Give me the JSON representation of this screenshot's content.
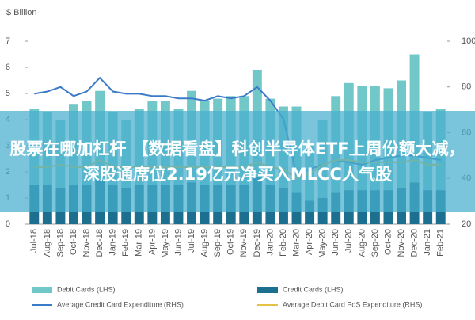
{
  "chart_data": {
    "type": "bar_line",
    "y_label": "$ Billion",
    "categories": [
      "Jul-18",
      "Aug-18",
      "Sep-18",
      "Oct-18",
      "Nov-18",
      "Dec-18",
      "Jan-19",
      "Feb-19",
      "Mar-19",
      "Apr-19",
      "May-19",
      "Jun-19",
      "Jul-19",
      "Aug-19",
      "Sep-19",
      "Oct-19",
      "Nov-19",
      "Dec-19",
      "Jan-20",
      "Feb-20",
      "Mar-20",
      "Apr-20",
      "May-20",
      "Jun-20",
      "Jul-20",
      "Aug-20",
      "Sep-20",
      "Oct-20",
      "Nov-20",
      "Dec-20",
      "Jan-21",
      "Feb-21"
    ],
    "series": [
      {
        "name": "Credit Cards (LHS)",
        "color": "#1d6f8f",
        "kind": "bar",
        "values": [
          1.5,
          1.5,
          1.4,
          1.5,
          1.5,
          1.7,
          1.5,
          1.4,
          1.5,
          1.5,
          1.5,
          1.5,
          1.6,
          1.5,
          1.5,
          1.5,
          1.5,
          1.8,
          1.5,
          1.4,
          1.2,
          0.9,
          1.0,
          1.2,
          1.3,
          1.3,
          1.3,
          1.3,
          1.4,
          1.6,
          1.3,
          1.3
        ]
      },
      {
        "name": "Debit Cards (LHS)",
        "color": "#72c8c8",
        "kind": "bar",
        "values": [
          2.9,
          2.8,
          2.6,
          3.1,
          3.2,
          3.4,
          2.8,
          2.6,
          2.9,
          3.2,
          3.2,
          2.9,
          3.5,
          3.2,
          3.3,
          3.4,
          3.4,
          4.1,
          3.3,
          3.1,
          3.3,
          2.1,
          3.0,
          3.7,
          4.1,
          4.0,
          4.0,
          3.9,
          4.1,
          4.9,
          3.0,
          3.1
        ]
      },
      {
        "name": "Average Credit Card Expenditure (RHS)",
        "color": "#3a7bc8",
        "kind": "line",
        "axis": "y2",
        "values": [
          77,
          78,
          80,
          76,
          78,
          84,
          78,
          77,
          77,
          76,
          76,
          75,
          75,
          74,
          76,
          75,
          76,
          80,
          74,
          66,
          42,
          44,
          46,
          48,
          47,
          46,
          48,
          49,
          50,
          50,
          49,
          48
        ]
      },
      {
        "name": "Average Debit Card PoS Expenditure (RHS)",
        "color": "#e6c24a",
        "kind": "line",
        "axis": "y2",
        "values": [
          45,
          45,
          46,
          45,
          45,
          48,
          45,
          45,
          45,
          45,
          45,
          45,
          45,
          45,
          45,
          45,
          45,
          47,
          45,
          44,
          40,
          42,
          46,
          48,
          48,
          47,
          47,
          47,
          47,
          48,
          46,
          46
        ]
      }
    ],
    "ylim": [
      0,
      7
    ],
    "yticks": [
      0,
      1,
      2,
      3,
      4,
      5,
      6,
      7
    ],
    "y2lim": [
      20,
      100
    ],
    "y2ticks": [
      20,
      40,
      60,
      80,
      100
    ],
    "grid": false
  },
  "banner": {
    "text": "股票在哪加杠杆 【数据看盘】科创半导体ETF上周份额大减，深股通席位2.19亿元净买入MLCC人气股"
  }
}
